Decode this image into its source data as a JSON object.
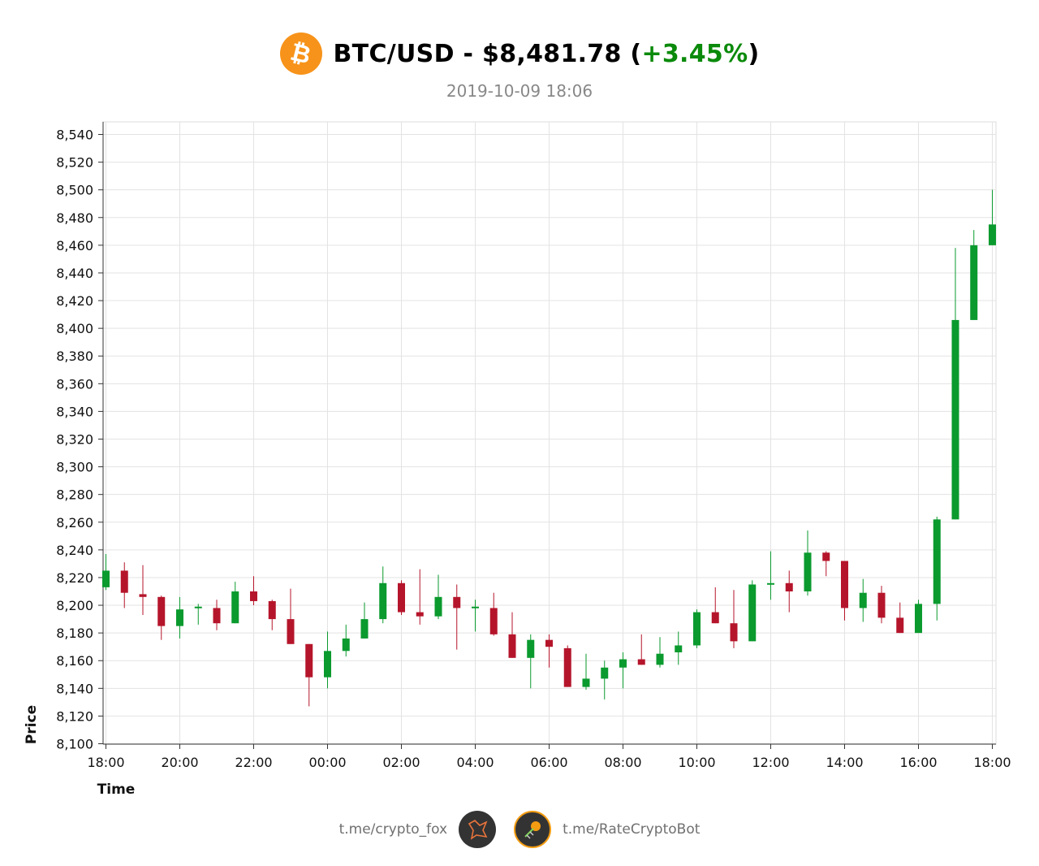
{
  "header": {
    "pair": "BTC/USD",
    "separator": " - ",
    "price": "$8,481.78",
    "open_paren": " (",
    "change": "+3.45%",
    "close_paren": ")",
    "datetime": "2019-10-09 18:06",
    "logo_icon": "bitcoin-icon",
    "logo_color": "#f7931a",
    "change_color": "#0a8a0a"
  },
  "footer": {
    "left_link": "t.me/crypto_fox",
    "right_link": "t.me/RateCryptoBot",
    "left_icon": "fox-icon",
    "right_icon": "bot-icon"
  },
  "colors": {
    "up": "#0a9a2e",
    "down": "#b5152b",
    "grid": "#e3e3e3"
  },
  "chart_data": {
    "type": "candlestick",
    "xlabel": "Time",
    "ylabel": "Price",
    "ylim": [
      8100,
      8550
    ],
    "y_ticks": [
      8100,
      8120,
      8140,
      8160,
      8180,
      8200,
      8220,
      8240,
      8260,
      8280,
      8300,
      8320,
      8340,
      8360,
      8380,
      8400,
      8420,
      8440,
      8460,
      8480,
      8500,
      8520,
      8540
    ],
    "y_tick_labels": [
      "8,100",
      "8,120",
      "8,140",
      "8,160",
      "8,180",
      "8,200",
      "8,220",
      "8,240",
      "8,260",
      "8,280",
      "8,300",
      "8,320",
      "8,340",
      "8,360",
      "8,380",
      "8,400",
      "8,420",
      "8,440",
      "8,460",
      "8,480",
      "8,500",
      "8,520",
      "8,540"
    ],
    "x_tick_labels": [
      "18:00",
      "20:00",
      "22:00",
      "00:00",
      "02:00",
      "04:00",
      "06:00",
      "08:00",
      "10:00",
      "12:00",
      "14:00",
      "16:00",
      "18:00"
    ],
    "grid": true,
    "candle_interval": "30m",
    "candles": [
      {
        "t": "18:00",
        "o": 8213,
        "h": 8237,
        "l": 8211,
        "c": 8225
      },
      {
        "t": "18:30",
        "o": 8225,
        "h": 8231,
        "l": 8198,
        "c": 8209
      },
      {
        "t": "19:00",
        "o": 8208,
        "h": 8229,
        "l": 8193,
        "c": 8206
      },
      {
        "t": "19:30",
        "o": 8206,
        "h": 8207,
        "l": 8175,
        "c": 8185
      },
      {
        "t": "20:00",
        "o": 8185,
        "h": 8206,
        "l": 8176,
        "c": 8197
      },
      {
        "t": "20:30",
        "o": 8198,
        "h": 8201,
        "l": 8186,
        "c": 8199
      },
      {
        "t": "21:00",
        "o": 8198,
        "h": 8204,
        "l": 8182,
        "c": 8187
      },
      {
        "t": "21:30",
        "o": 8187,
        "h": 8217,
        "l": 8187,
        "c": 8210
      },
      {
        "t": "22:00",
        "o": 8210,
        "h": 8221,
        "l": 8200,
        "c": 8203
      },
      {
        "t": "22:30",
        "o": 8203,
        "h": 8204,
        "l": 8182,
        "c": 8190
      },
      {
        "t": "23:00",
        "o": 8190,
        "h": 8212,
        "l": 8172,
        "c": 8172
      },
      {
        "t": "23:30",
        "o": 8172,
        "h": 8172,
        "l": 8127,
        "c": 8148
      },
      {
        "t": "00:00",
        "o": 8148,
        "h": 8181,
        "l": 8140,
        "c": 8167
      },
      {
        "t": "00:30",
        "o": 8167,
        "h": 8186,
        "l": 8163,
        "c": 8176
      },
      {
        "t": "01:00",
        "o": 8176,
        "h": 8202,
        "l": 8176,
        "c": 8190
      },
      {
        "t": "01:30",
        "o": 8190,
        "h": 8228,
        "l": 8187,
        "c": 8216
      },
      {
        "t": "02:00",
        "o": 8216,
        "h": 8218,
        "l": 8193,
        "c": 8195
      },
      {
        "t": "02:30",
        "o": 8195,
        "h": 8226,
        "l": 8186,
        "c": 8192
      },
      {
        "t": "03:00",
        "o": 8192,
        "h": 8222,
        "l": 8190,
        "c": 8206
      },
      {
        "t": "03:30",
        "o": 8206,
        "h": 8215,
        "l": 8168,
        "c": 8198
      },
      {
        "t": "04:00",
        "o": 8198,
        "h": 8204,
        "l": 8181,
        "c": 8199
      },
      {
        "t": "04:30",
        "o": 8198,
        "h": 8209,
        "l": 8178,
        "c": 8179
      },
      {
        "t": "05:00",
        "o": 8179,
        "h": 8195,
        "l": 8162,
        "c": 8162
      },
      {
        "t": "05:30",
        "o": 8162,
        "h": 8179,
        "l": 8140,
        "c": 8175
      },
      {
        "t": "06:00",
        "o": 8175,
        "h": 8179,
        "l": 8155,
        "c": 8170
      },
      {
        "t": "06:30",
        "o": 8169,
        "h": 8171,
        "l": 8141,
        "c": 8141
      },
      {
        "t": "07:00",
        "o": 8141,
        "h": 8165,
        "l": 8139,
        "c": 8147
      },
      {
        "t": "07:30",
        "o": 8147,
        "h": 8160,
        "l": 8132,
        "c": 8155
      },
      {
        "t": "08:00",
        "o": 8155,
        "h": 8166,
        "l": 8140,
        "c": 8161
      },
      {
        "t": "08:30",
        "o": 8161,
        "h": 8179,
        "l": 8157,
        "c": 8157
      },
      {
        "t": "09:00",
        "o": 8157,
        "h": 8177,
        "l": 8155,
        "c": 8165
      },
      {
        "t": "09:30",
        "o": 8166,
        "h": 8181,
        "l": 8157,
        "c": 8171
      },
      {
        "t": "10:00",
        "o": 8171,
        "h": 8197,
        "l": 8169,
        "c": 8195
      },
      {
        "t": "10:30",
        "o": 8195,
        "h": 8213,
        "l": 8187,
        "c": 8187
      },
      {
        "t": "11:00",
        "o": 8187,
        "h": 8211,
        "l": 8169,
        "c": 8174
      },
      {
        "t": "11:30",
        "o": 8174,
        "h": 8218,
        "l": 8174,
        "c": 8215
      },
      {
        "t": "12:00",
        "o": 8215,
        "h": 8239,
        "l": 8204,
        "c": 8216
      },
      {
        "t": "12:30",
        "o": 8216,
        "h": 8225,
        "l": 8195,
        "c": 8210
      },
      {
        "t": "13:00",
        "o": 8210,
        "h": 8254,
        "l": 8207,
        "c": 8238
      },
      {
        "t": "13:30",
        "o": 8238,
        "h": 8239,
        "l": 8221,
        "c": 8232
      },
      {
        "t": "14:00",
        "o": 8232,
        "h": 8232,
        "l": 8189,
        "c": 8198
      },
      {
        "t": "14:30",
        "o": 8198,
        "h": 8219,
        "l": 8188,
        "c": 8209
      },
      {
        "t": "15:00",
        "o": 8209,
        "h": 8214,
        "l": 8187,
        "c": 8191
      },
      {
        "t": "15:30",
        "o": 8191,
        "h": 8202,
        "l": 8180,
        "c": 8180
      },
      {
        "t": "16:00",
        "o": 8180,
        "h": 8204,
        "l": 8180,
        "c": 8201
      },
      {
        "t": "16:30",
        "o": 8201,
        "h": 8264,
        "l": 8189,
        "c": 8262
      },
      {
        "t": "17:00",
        "o": 8262,
        "h": 8458,
        "l": 8262,
        "c": 8406
      },
      {
        "t": "17:30",
        "o": 8406,
        "h": 8471,
        "l": 8406,
        "c": 8460
      },
      {
        "t": "18:00",
        "o": 8460,
        "h": 8500,
        "l": 8460,
        "c": 8475
      }
    ]
  }
}
